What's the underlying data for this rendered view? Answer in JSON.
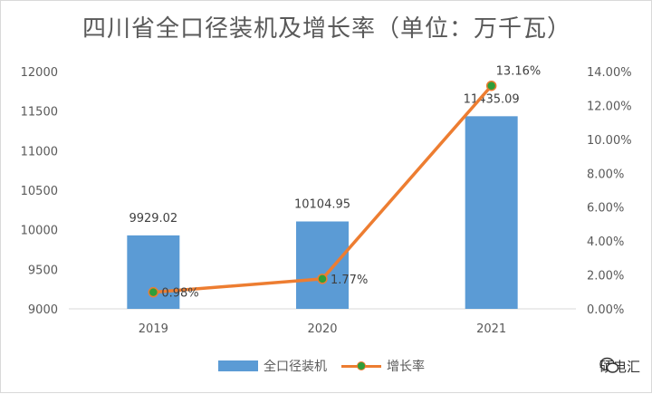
{
  "chart_data": {
    "type": "bar+line",
    "title": "四川省全口径装机及增长率（单位：万千瓦）",
    "categories": [
      "2019",
      "2020",
      "2021"
    ],
    "series": [
      {
        "name": "全口径装机",
        "type": "bar",
        "axis": "left",
        "values": [
          9929.02,
          10104.95,
          11435.09
        ],
        "labels": [
          "9929.02",
          "10104.95",
          "11435.09"
        ],
        "color": "#5b9bd5"
      },
      {
        "name": "增长率",
        "type": "line",
        "axis": "right",
        "values": [
          0.98,
          1.77,
          13.16
        ],
        "labels": [
          "0.98%",
          "1.77%",
          "13.16%"
        ],
        "color": "#ed7d31",
        "marker_color": "#2e9e3a"
      }
    ],
    "y_left": {
      "min": 9000,
      "max": 12000,
      "step": 500,
      "ticks": [
        "9000",
        "9500",
        "10000",
        "10500",
        "11000",
        "11500",
        "12000"
      ]
    },
    "y_right": {
      "min": 0,
      "max": 14,
      "step": 2,
      "ticks": [
        "0.00%",
        "2.00%",
        "4.00%",
        "6.00%",
        "8.00%",
        "10.00%",
        "12.00%",
        "14.00%"
      ]
    },
    "grid": false,
    "legend_position": "bottom"
  },
  "watermark": {
    "text": "硕电汇",
    "icon": "wechat-icon"
  }
}
